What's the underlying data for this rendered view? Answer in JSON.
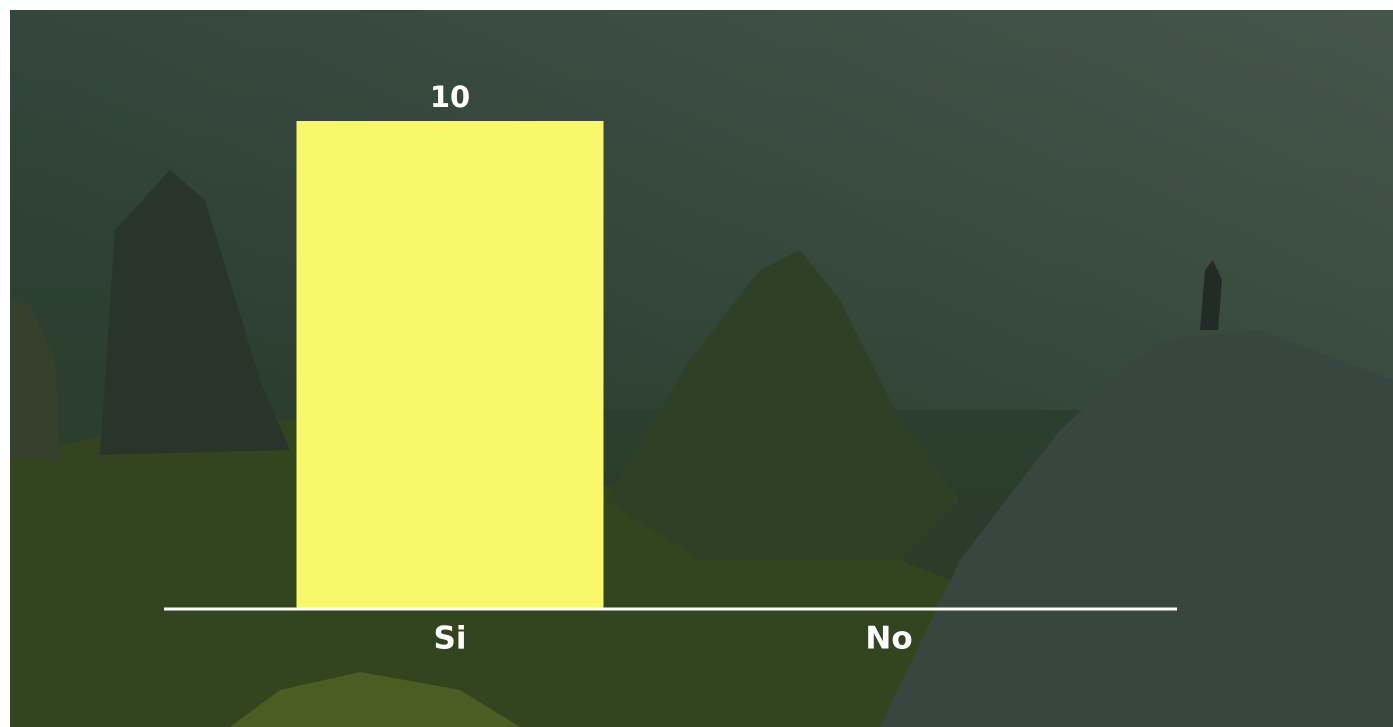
{
  "chart_data": {
    "type": "bar",
    "categories": [
      "Si",
      "No"
    ],
    "values": [
      10,
      0
    ],
    "color": "#f9f76a"
  }
}
